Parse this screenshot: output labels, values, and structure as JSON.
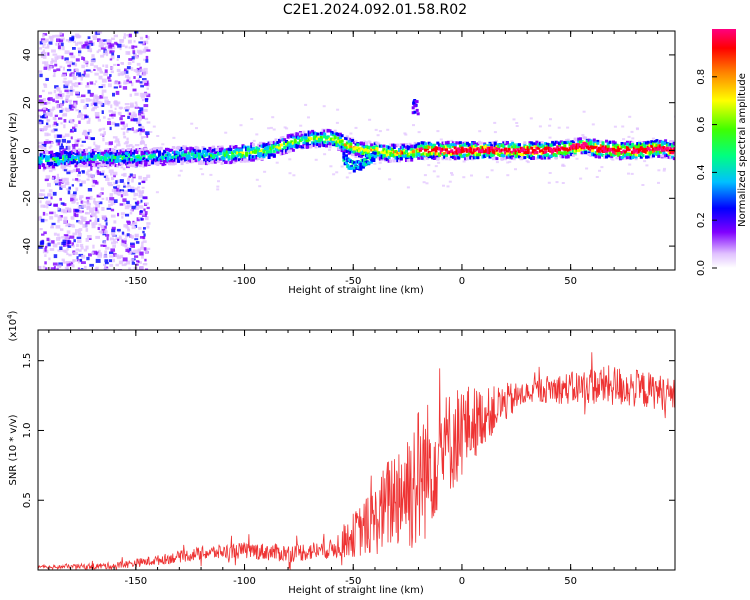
{
  "title": "C2E1.2024.092.01.58.R02",
  "chart_data": [
    {
      "type": "heatmap",
      "name": "spectrogram",
      "xlabel": "Height of straight line (km)",
      "ylabel": "Frequency (Hz)",
      "xlim": [
        -195,
        98
      ],
      "ylim": [
        -50,
        50
      ],
      "xticks": [
        -150,
        -100,
        -50,
        0,
        50
      ],
      "yticks": [
        -40,
        -20,
        0,
        20,
        40
      ],
      "colorbar": {
        "label": "Normalized spectral amplitude",
        "range": [
          0,
          1
        ],
        "ticks": [
          0.0,
          0.2,
          0.4,
          0.6,
          0.8
        ],
        "colors": [
          "#ffffff",
          "#e0c0ff",
          "#8000ff",
          "#0000ff",
          "#00c0ff",
          "#00ff80",
          "#40ff00",
          "#ffff00",
          "#ff8000",
          "#ff0000",
          "#ff0080"
        ]
      },
      "ridge": {
        "x": [
          -195,
          -170,
          -150,
          -130,
          -110,
          -100,
          -90,
          -80,
          -70,
          -60,
          -55,
          -50,
          -45,
          -40,
          -35,
          -30,
          -25,
          -20,
          -10,
          0,
          10,
          20,
          30,
          40,
          50,
          55,
          60,
          70,
          80,
          90,
          98
        ],
        "y": [
          -4,
          -3,
          -3,
          -2,
          -2,
          -1,
          0,
          3,
          5,
          5,
          3,
          1,
          0,
          0,
          -1,
          -1,
          -1,
          0,
          0,
          0,
          0,
          0,
          0,
          0,
          1,
          2,
          1,
          0,
          0,
          1,
          0
        ]
      },
      "side_branch": {
        "x": [
          -55,
          -52,
          -50,
          -47,
          -44,
          -40
        ],
        "y": [
          -3,
          -6,
          -7,
          -6,
          -4,
          -2
        ]
      },
      "blob": {
        "x": -22,
        "y": 19
      }
    },
    {
      "type": "line",
      "name": "snr",
      "xlabel": "Height of straight line (km)",
      "ylabel": "SNR (10 * v/v)",
      "multiplier": "(x10^4)",
      "xlim": [
        -195,
        98
      ],
      "ylim": [
        0,
        1.72
      ],
      "xticks": [
        -150,
        -100,
        -50,
        0,
        50
      ],
      "yticks": [
        0.5,
        1.0,
        1.5
      ],
      "ytick_labels": [
        "0.5",
        "1.0",
        "1.5"
      ],
      "color": "#ee3333",
      "envelope": {
        "x": [
          -195,
          -160,
          -140,
          -120,
          -100,
          -80,
          -60,
          -50,
          -40,
          -30,
          -20,
          -10,
          0,
          10,
          20,
          30,
          40,
          50,
          60,
          70,
          80,
          90,
          98
        ],
        "y": [
          0.02,
          0.03,
          0.07,
          0.12,
          0.14,
          0.12,
          0.15,
          0.25,
          0.35,
          0.55,
          0.65,
          0.85,
          1.0,
          1.1,
          1.2,
          1.27,
          1.3,
          1.3,
          1.32,
          1.32,
          1.3,
          1.28,
          1.25
        ]
      },
      "noise_amplitude": {
        "x": [
          -195,
          -150,
          -100,
          -60,
          -40,
          -30,
          -20,
          -10,
          0,
          10,
          30,
          50,
          70,
          98
        ],
        "y": [
          0.01,
          0.03,
          0.06,
          0.07,
          0.25,
          0.4,
          0.55,
          0.4,
          0.35,
          0.2,
          0.08,
          0.12,
          0.15,
          0.12
        ]
      }
    }
  ]
}
